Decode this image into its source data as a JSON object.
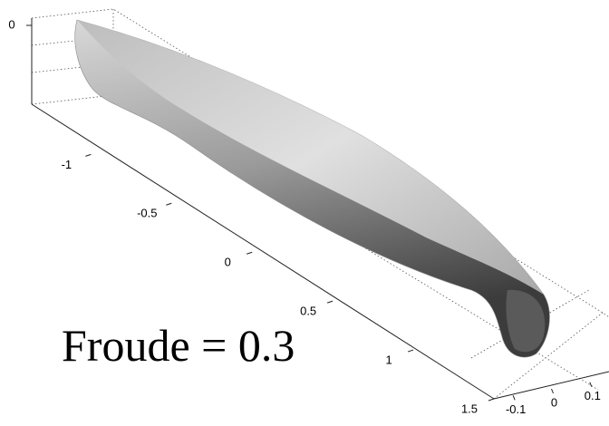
{
  "chart_data": {
    "type": "surface",
    "annotation": "Froude = 0.3",
    "xlim": [
      -1.3,
      1.5
    ],
    "xticks": [
      -1,
      -0.5,
      0,
      0.5,
      1,
      1.5
    ],
    "ylim": [
      -0.15,
      0.15
    ],
    "yticks": [
      -0.1,
      0,
      0.1
    ],
    "zlim": [
      -0.15,
      0
    ],
    "zticks": [
      0
    ],
    "color": "#8c8c8c"
  }
}
